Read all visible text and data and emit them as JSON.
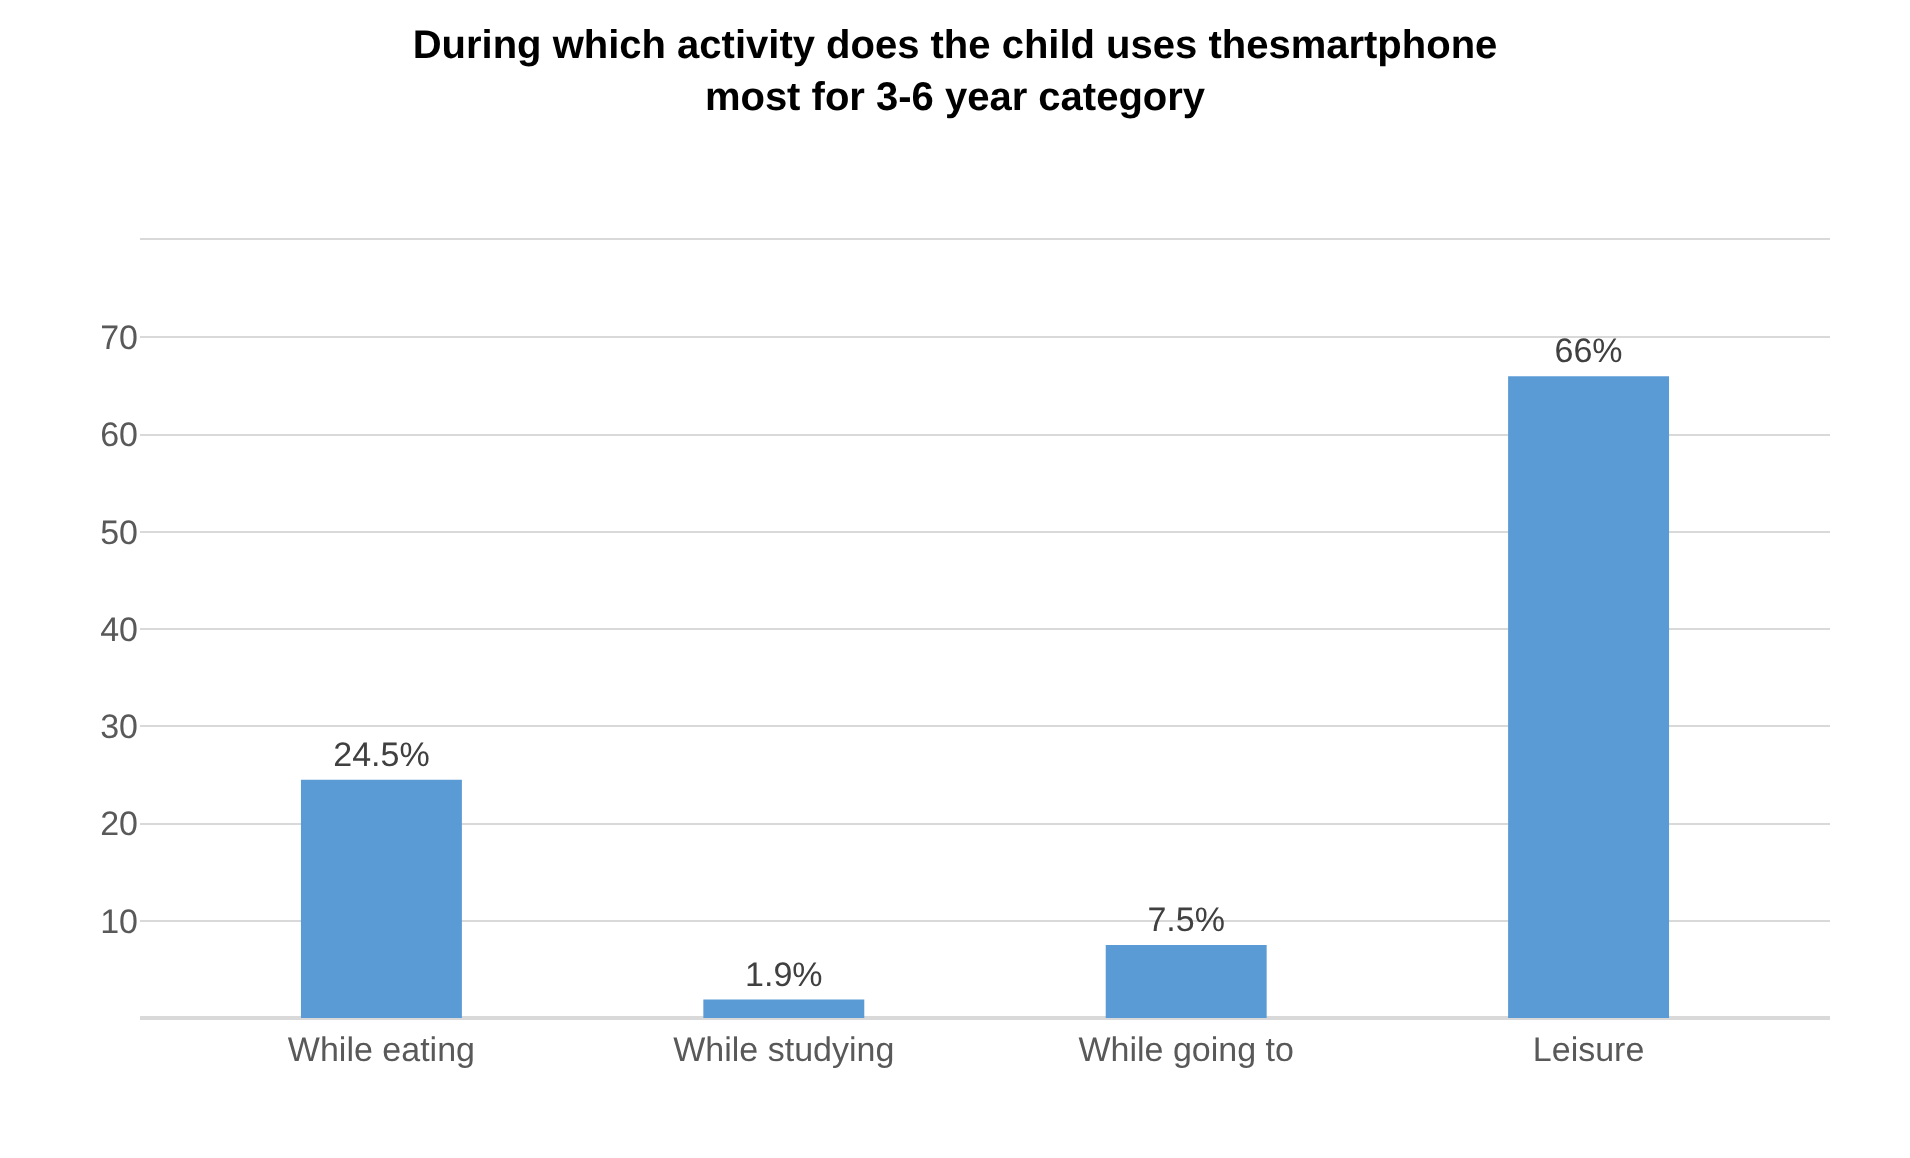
{
  "chart_data": {
    "type": "bar",
    "title": "During which activity does the child uses thesmartphone\nmost for 3-6 year category",
    "categories": [
      "While eating",
      "While studying",
      "While going to",
      "Leisure"
    ],
    "values": [
      24.5,
      1.9,
      7.5,
      66
    ],
    "value_labels": [
      "24.5%",
      "1.9%",
      "7.5%",
      "66%"
    ],
    "color": "#5b9bd5",
    "ylim": [
      0,
      80
    ],
    "yticks": [
      {
        "value": 0,
        "label": null
      },
      10,
      20,
      30,
      40,
      50,
      60,
      70,
      {
        "value": 80,
        "label": null
      }
    ],
    "grid": "y"
  }
}
